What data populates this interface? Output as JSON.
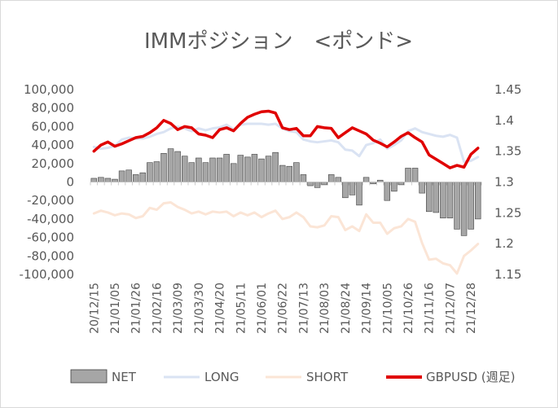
{
  "chart_data": {
    "type": "bar",
    "title": "IMMポジション　<ポンド>",
    "x": [
      "20/12/15",
      "20/12/22",
      "20/12/29",
      "21/01/05",
      "21/01/12",
      "21/01/19",
      "21/01/26",
      "21/02/02",
      "21/02/09",
      "21/02/16",
      "21/02/23",
      "21/03/02",
      "21/03/09",
      "21/03/16",
      "21/03/23",
      "21/03/30",
      "21/04/06",
      "21/04/13",
      "21/04/20",
      "21/04/27",
      "21/05/04",
      "21/05/11",
      "21/05/18",
      "21/05/25",
      "21/06/01",
      "21/06/08",
      "21/06/15",
      "21/06/22",
      "21/06/29",
      "21/07/06",
      "21/07/13",
      "21/07/20",
      "21/07/27",
      "21/08/03",
      "21/08/10",
      "21/08/17",
      "21/08/24",
      "21/08/31",
      "21/09/07",
      "21/09/14",
      "21/09/21",
      "21/09/28",
      "21/10/05",
      "21/10/12",
      "21/10/19",
      "21/10/26",
      "21/11/02",
      "21/11/09",
      "21/11/16",
      "21/11/23",
      "21/11/30",
      "21/12/07",
      "21/12/14",
      "21/12/21",
      "21/12/28",
      "22/01/04"
    ],
    "x_tick_labels": [
      "20/12/15",
      "21/01/05",
      "21/01/26",
      "21/02/16",
      "21/03/09",
      "21/03/30",
      "21/04/20",
      "21/05/11",
      "21/06/01",
      "21/06/22",
      "21/07/13",
      "21/08/03",
      "21/08/24",
      "21/09/14",
      "21/10/05",
      "21/10/26",
      "21/11/16",
      "21/12/07",
      "21/12/28"
    ],
    "y_left": {
      "ticks": [
        "100,000",
        "80,000",
        "60,000",
        "40,000",
        "20,000",
        "0",
        "-20,000",
        "-40,000",
        "-60,000",
        "-80,000",
        "-100,000"
      ],
      "range": [
        -100000,
        100000
      ]
    },
    "y_right": {
      "ticks": [
        "1.45",
        "1.4",
        "1.35",
        "1.3",
        "1.25",
        "1.2",
        "1.15"
      ],
      "range": [
        1.15,
        1.45
      ]
    },
    "grid": false,
    "legend_position": "bottom",
    "series": [
      {
        "name": "NET",
        "type": "bar",
        "axis": "left",
        "color": "#a6a6a6",
        "values": [
          4000,
          5000,
          4000,
          3000,
          12000,
          13000,
          8000,
          10000,
          21000,
          22000,
          31000,
          36000,
          33000,
          28000,
          21000,
          26000,
          21000,
          26000,
          26000,
          30000,
          20000,
          29000,
          27000,
          30000,
          25000,
          28000,
          32000,
          18000,
          17000,
          21000,
          8000,
          -4000,
          -6000,
          -3000,
          8000,
          5000,
          -17000,
          -14000,
          -25000,
          5000,
          -2000,
          2000,
          -20000,
          -10000,
          -3000,
          15000,
          15000,
          -12000,
          -32000,
          -33000,
          -39000,
          -39000,
          -51000,
          -58000,
          -51000,
          -40000
        ]
      },
      {
        "name": "LONG",
        "type": "line",
        "axis": "left",
        "color": "#dae3f3",
        "values": [
          38000,
          36000,
          37000,
          39000,
          46000,
          48000,
          47000,
          47000,
          49000,
          52000,
          54000,
          58000,
          60000,
          58000,
          55000,
          58000,
          56000,
          58000,
          59000,
          62000,
          57000,
          62000,
          63000,
          63000,
          63000,
          62000,
          63000,
          58000,
          55000,
          54000,
          46000,
          44000,
          43000,
          44000,
          45000,
          43000,
          35000,
          34000,
          28000,
          40000,
          42000,
          46000,
          36000,
          40000,
          45000,
          55000,
          58000,
          54000,
          52000,
          50000,
          49000,
          51000,
          48000,
          22000,
          23000,
          27000
        ]
      },
      {
        "name": "SHORT",
        "type": "line",
        "axis": "left",
        "color": "#fbe5d6",
        "values": [
          -34000,
          -31000,
          -33000,
          -36000,
          -34000,
          -35000,
          -39000,
          -37000,
          -28000,
          -30000,
          -23000,
          -22000,
          -27000,
          -30000,
          -34000,
          -32000,
          -35000,
          -32000,
          -33000,
          -32000,
          -37000,
          -33000,
          -36000,
          -33000,
          -38000,
          -34000,
          -31000,
          -40000,
          -38000,
          -33000,
          -38000,
          -48000,
          -49000,
          -47000,
          -37000,
          -38000,
          -52000,
          -48000,
          -53000,
          -35000,
          -44000,
          -44000,
          -56000,
          -50000,
          -48000,
          -40000,
          -43000,
          -66000,
          -84000,
          -83000,
          -88000,
          -90000,
          -99000,
          -80000,
          -74000,
          -67000
        ]
      },
      {
        "name": "GBPUSD (週足)",
        "type": "line",
        "axis": "right",
        "color": "#e00000",
        "values": [
          1.35,
          1.36,
          1.365,
          1.358,
          1.362,
          1.367,
          1.372,
          1.374,
          1.38,
          1.388,
          1.4,
          1.395,
          1.385,
          1.39,
          1.388,
          1.378,
          1.376,
          1.372,
          1.385,
          1.388,
          1.383,
          1.395,
          1.405,
          1.41,
          1.414,
          1.415,
          1.412,
          1.388,
          1.385,
          1.387,
          1.375,
          1.375,
          1.39,
          1.388,
          1.387,
          1.372,
          1.38,
          1.388,
          1.383,
          1.378,
          1.368,
          1.363,
          1.357,
          1.365,
          1.374,
          1.38,
          1.372,
          1.365,
          1.344,
          1.337,
          1.33,
          1.323,
          1.327,
          1.324,
          1.345,
          1.355
        ]
      }
    ]
  }
}
